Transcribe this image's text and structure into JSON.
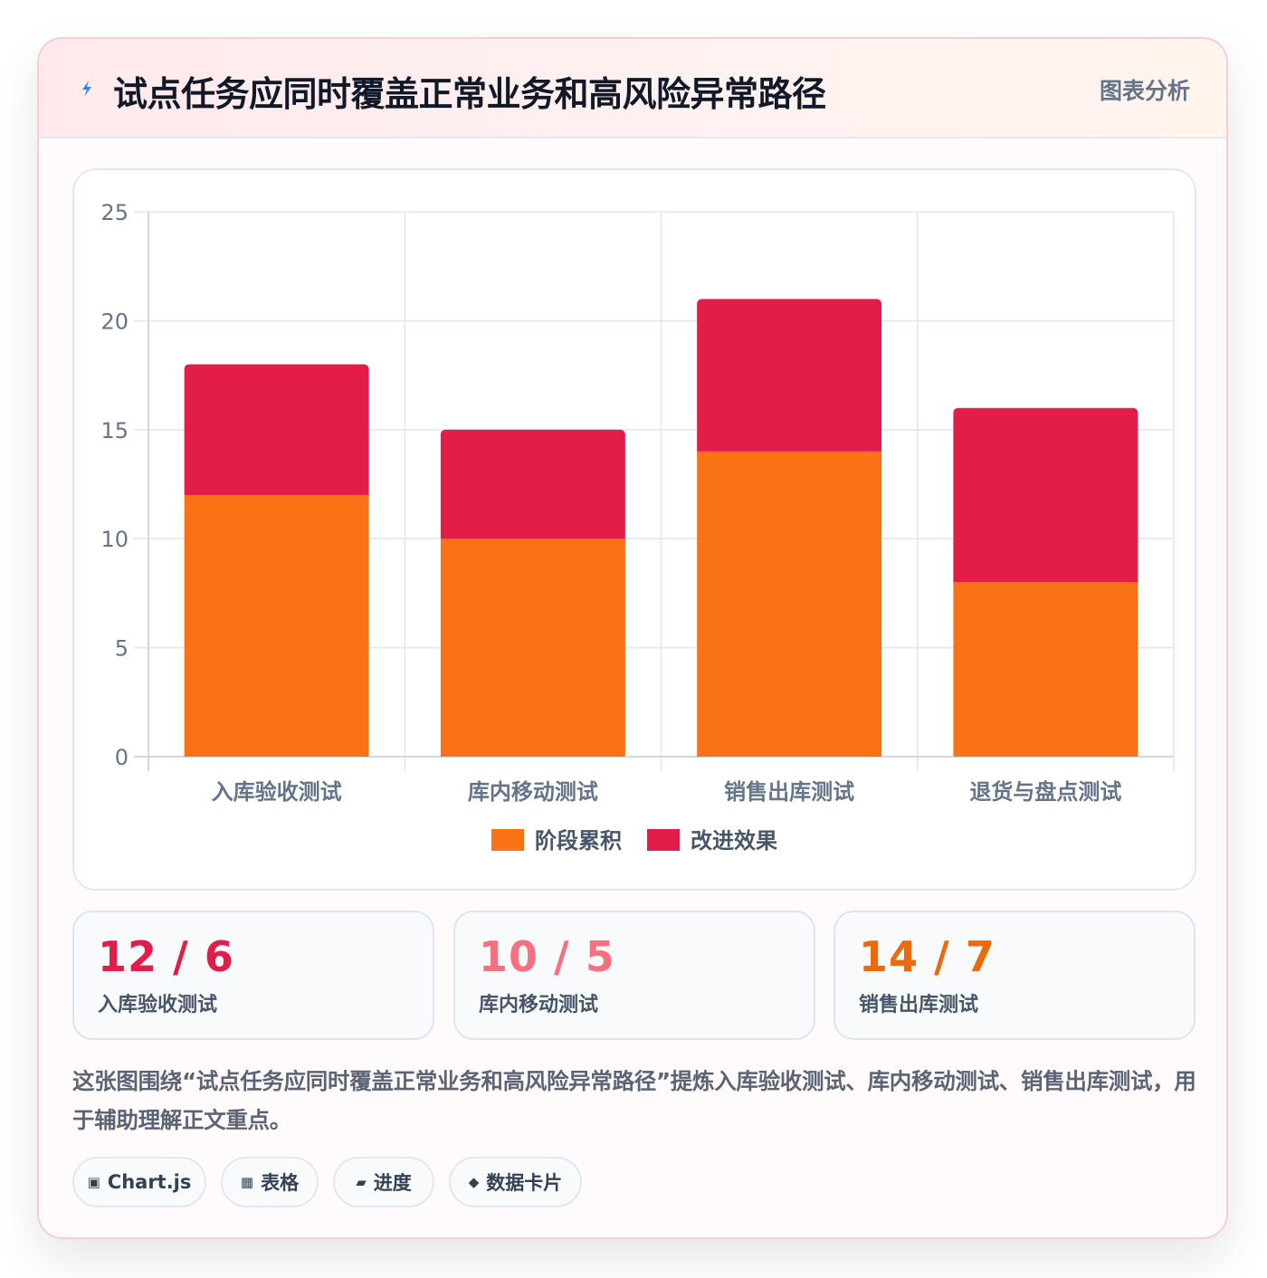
{
  "header": {
    "title": "试点任务应同时覆盖正常业务和高风险异常路径",
    "badge": "图表分析"
  },
  "colors": {
    "accent": "#e11d48",
    "stage": "#f97316",
    "improve": "#e11d48",
    "stat_values": [
      "#e11d48",
      "#f43f5e",
      "#ea580c"
    ]
  },
  "chart_data": {
    "type": "bar",
    "stacked": true,
    "categories": [
      "入库验收测试",
      "库内移动测试",
      "销售出库测试",
      "退货与盘点测试"
    ],
    "series": [
      {
        "name": "阶段累积",
        "values": [
          12,
          10,
          14,
          8
        ],
        "color": "#f97316"
      },
      {
        "name": "改进效果",
        "values": [
          6,
          5,
          7,
          8
        ],
        "color": "#e11d48"
      }
    ],
    "ylim": [
      0,
      25
    ],
    "yticks": [
      0,
      5,
      10,
      15,
      20,
      25
    ],
    "grid": true,
    "legend": "bottom"
  },
  "stats": [
    {
      "value": "12 / 6",
      "label": "入库验收测试"
    },
    {
      "value": "10 / 5",
      "label": "库内移动测试"
    },
    {
      "value": "14 / 7",
      "label": "销售出库测试"
    }
  ],
  "description": "这张图围绕“试点任务应同时覆盖正常业务和高风险异常路径”提炼入库验收测试、库内移动测试、销售出库测试，用于辅助理解正文重点。",
  "tags": [
    {
      "icon": "square-dot-icon",
      "glyph": "▣",
      "label": "Chart.js"
    },
    {
      "icon": "table-icon",
      "glyph": "▦",
      "label": "表格"
    },
    {
      "icon": "progress-icon",
      "glyph": "▰",
      "label": "进度"
    },
    {
      "icon": "diamond-icon",
      "glyph": "◆",
      "label": "数据卡片"
    }
  ]
}
